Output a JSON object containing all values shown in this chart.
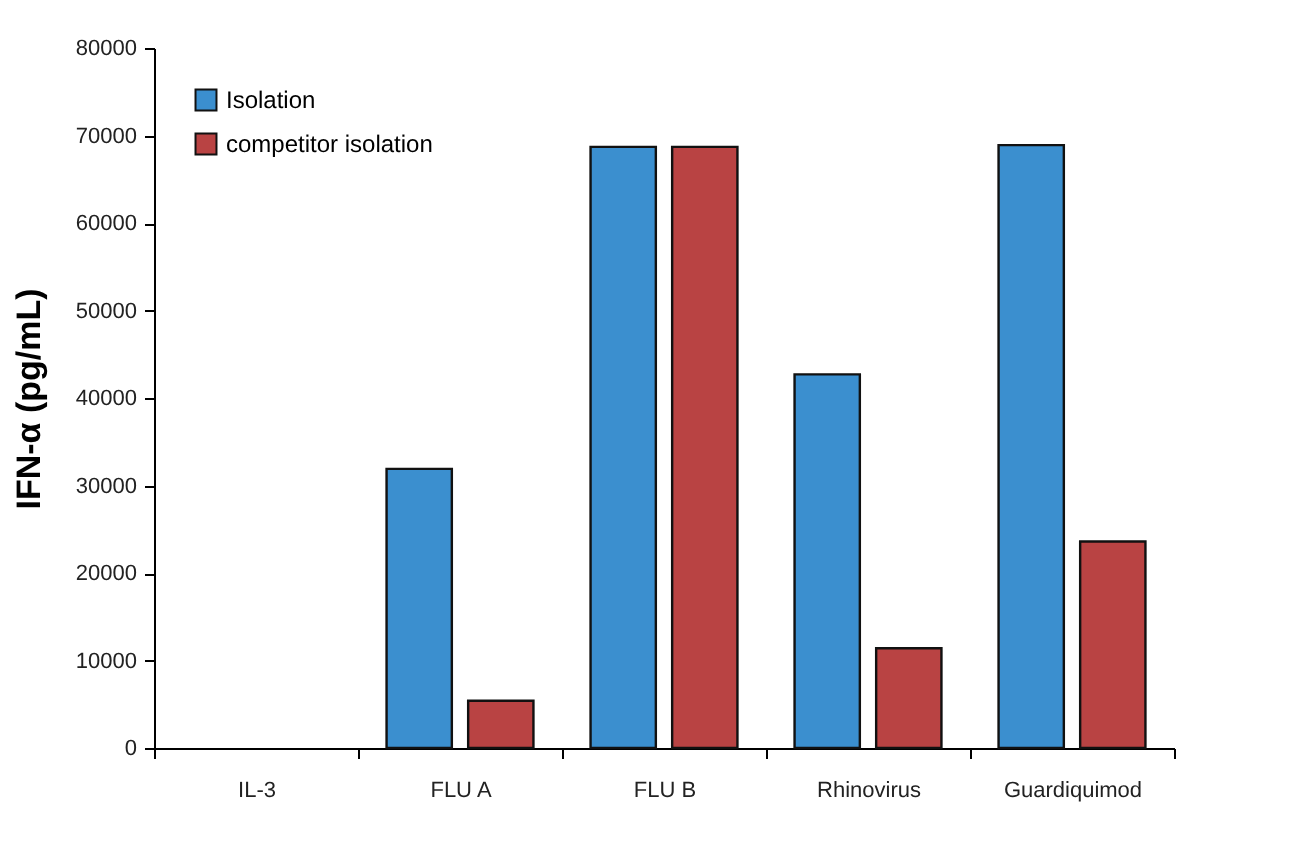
{
  "chart_data": {
    "type": "bar",
    "ylabel": "IFN-α (pg/mL)",
    "categories": [
      "IL-3",
      "FLU A",
      "FLU B",
      "Rhinovirus",
      "Guardiquimod"
    ],
    "series": [
      {
        "name": "Isolation",
        "color": "#3b8fcf",
        "values": [
          null,
          31900,
          68700,
          42700,
          68900
        ]
      },
      {
        "name": "competitor isolation",
        "color": "#b94343",
        "values": [
          null,
          5400,
          68700,
          11400,
          23600
        ]
      }
    ],
    "ylim": [
      0,
      80000
    ],
    "yticks": [
      0,
      10000,
      20000,
      30000,
      40000,
      50000,
      60000,
      70000,
      80000
    ],
    "grid": false,
    "legend": "top left"
  }
}
